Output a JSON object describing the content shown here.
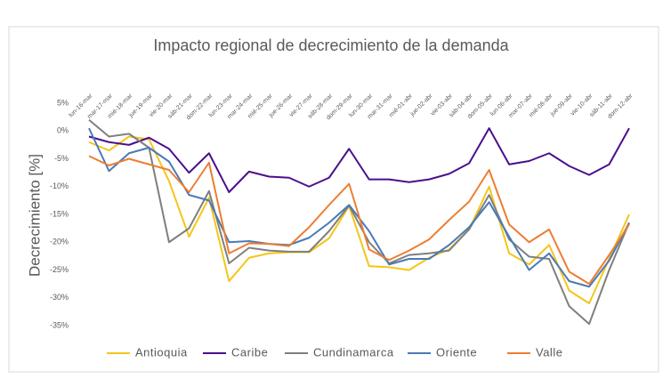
{
  "chart_data": {
    "type": "line",
    "title": "Impacto regional de decrecimiento de la demanda",
    "y_label": "Decrecimiento [%]",
    "categories": [
      "lun-16-mar",
      "mar-17-mar",
      "mié-18-mar",
      "jue-19-mar",
      "vie-20-mar",
      "sáb-21-mar",
      "dom-22-mar",
      "lun-23-mar",
      "mar-24-mar",
      "mié-25-mar",
      "jue-26-mar",
      "vie-27-mar",
      "sáb-28-mar",
      "dom-29-mar",
      "lun-30-mar",
      "mar-31-mar",
      "mié-01-abr",
      "jue-02-abr",
      "vie-03-abr",
      "sáb-04-abr",
      "dom-05-abr",
      "lun-06-abr",
      "mar-07-abr",
      "mié-08-abr",
      "jue-09-abr",
      "vie-10-abr",
      "sáb-11-abr",
      "dom-12-abr"
    ],
    "series": [
      {
        "name": "Antioquia",
        "color": "#f5c518",
        "values": [
          -2,
          -3.5,
          -1,
          -1.5,
          -9,
          -19,
          -12,
          -27,
          -22.8,
          -22,
          -21.8,
          -21.8,
          -19.3,
          -13.5,
          -24.3,
          -24.5,
          -25,
          -22.8,
          -21.3,
          -17.7,
          -10,
          -22,
          -24,
          -20.5,
          -28.7,
          -31,
          -23,
          -15
        ]
      },
      {
        "name": "Caribe",
        "color": "#4b0f8c",
        "values": [
          -1,
          -2,
          -2.5,
          -1.2,
          -3.2,
          -7.5,
          -4,
          -11,
          -7.3,
          -8.2,
          -8.4,
          -10,
          -8.4,
          -3.2,
          -8.7,
          -8.7,
          -9.2,
          -8.7,
          -7.7,
          -5.8,
          0.5,
          -6,
          -5.4,
          -4,
          -6.3,
          -7.9,
          -6,
          0.5
        ]
      },
      {
        "name": "Cundinamarca",
        "color": "#7f7f7f",
        "values": [
          2,
          -1,
          -0.5,
          -3,
          -20,
          -17.5,
          -10.8,
          -23.8,
          -21,
          -21.5,
          -21.7,
          -21.7,
          -18,
          -13.4,
          -20,
          -23.8,
          -22.3,
          -22,
          -21.5,
          -17.7,
          -11.5,
          -19.5,
          -22.6,
          -23,
          -31.5,
          -34.7,
          -25,
          -16.5
        ]
      },
      {
        "name": "Oriente",
        "color": "#4a7ab5",
        "values": [
          0.5,
          -7.2,
          -4,
          -3,
          -5.5,
          -11.5,
          -12.5,
          -20,
          -19.8,
          -20.3,
          -20.5,
          -19.2,
          -16.5,
          -13.3,
          -18,
          -24,
          -23,
          -23,
          -20.5,
          -17.3,
          -12.8,
          -19,
          -25,
          -22,
          -27,
          -28,
          -23.3,
          -16.5
        ]
      },
      {
        "name": "Valle",
        "color": "#ed7d31",
        "values": [
          -4.5,
          -6.2,
          -5,
          -6,
          -7,
          -11,
          -5.7,
          -22,
          -20.2,
          -20.3,
          -20.7,
          -17.3,
          -13.3,
          -9.5,
          -21.3,
          -23.2,
          -21.5,
          -19.5,
          -16,
          -12.7,
          -7,
          -16.8,
          -20,
          -17.7,
          -25.3,
          -27.5,
          -22.3,
          -16.8
        ]
      }
    ],
    "ylim": [
      -35,
      5
    ],
    "yticks": [
      {
        "value": 5,
        "label": "5%"
      },
      {
        "value": 0,
        "label": "0%"
      },
      {
        "value": -5,
        "label": "-5%"
      },
      {
        "value": -10,
        "label": "-10%"
      },
      {
        "value": -15,
        "label": "-15%"
      },
      {
        "value": -20,
        "label": "-20%"
      },
      {
        "value": -25,
        "label": "-25%"
      },
      {
        "value": -30,
        "label": "-30%"
      },
      {
        "value": -35,
        "label": "-35%"
      }
    ],
    "grid": false,
    "legend": "bottom"
  }
}
